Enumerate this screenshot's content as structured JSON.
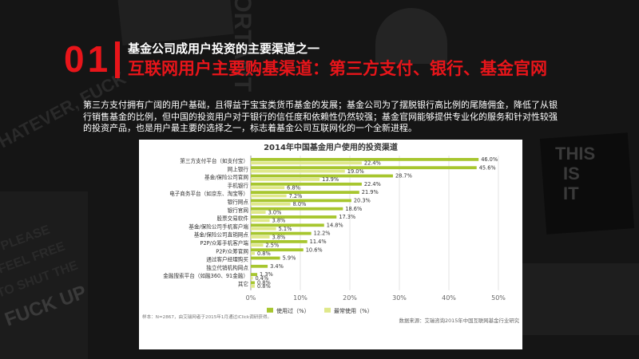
{
  "header": {
    "number": "01",
    "title_line1": "基金公司成用户投资的主要渠道之一",
    "title_line2": "互联网用户主要购基渠道：第三方支付、银行、基金官网"
  },
  "description": "第三方支付拥有广阔的用户基础，且得益于宝宝类货币基金的发展；基金公司为了摆脱银行高比例的尾随佣金，降低了从银行销售基金的比例，但中国的投资用户对于银行的信任度和依赖性仍然较强；基金官网能够提供专业化的服务和针对性较强的投资产品，也是用户最主要的选择之一，标志着基金公司互联网化的一个全新进程。",
  "background_words": [
    "WHATEVER, FUCK",
    "IMPORTANT",
    "PLEASE",
    "FEEL FREE",
    "TO SHUT THE",
    "FUCK UP",
    "THIS",
    "IS",
    "IT"
  ],
  "colors": {
    "accent": "#e8151a",
    "used": "#a7c62f",
    "most_used": "#dfe88a"
  },
  "chart_data": {
    "type": "bar",
    "orientation": "horizontal",
    "title": "2014年中国基金用户使用的投资渠道",
    "categories": [
      "第三方支付平台（如支付宝）",
      "网上银行",
      "基金/保险公司官网",
      "手机银行",
      "电子商务平台（如京东、淘宝等）",
      "银行网点",
      "银行官网",
      "股票交易软件",
      "基金/保险公司手机客户端",
      "基金/保险公司直销网点",
      "P2P/众筹手机客户端",
      "P2P/众筹官网",
      "通过客户经理购买",
      "独立代销机构网点",
      "金融搜索平台（如融360、91金融）",
      "其它"
    ],
    "series": [
      {
        "name": "使用过（%）",
        "values": [
          46.0,
          45.6,
          28.7,
          22.4,
          21.9,
          20.3,
          18.6,
          17.3,
          14.8,
          12.2,
          11.4,
          10.6,
          5.9,
          3.4,
          1.3,
          0.8
        ]
      },
      {
        "name": "最常使用（%）",
        "values": [
          22.4,
          19.0,
          13.9,
          6.8,
          7.2,
          8.0,
          3.0,
          3.8,
          5.1,
          3.8,
          2.5,
          0.8,
          null,
          null,
          0.4,
          0.8
        ]
      }
    ],
    "value_labels": {
      "used": [
        "46.0%",
        "45.6%",
        "28.7%",
        "22.4%",
        "21.9%",
        "20.3%",
        "18.6%",
        "17.3%",
        "14.8%",
        "12.2%",
        "11.4%",
        "10.6%",
        "5.9%",
        "3.4%",
        "1.3%",
        "0.8%"
      ],
      "most_used": [
        "22.4%",
        "19.0%",
        "13.9%",
        "6.8%",
        "7.2%",
        "8.0%",
        "3.0%",
        "3.8%",
        "5.1%",
        "3.8%",
        "2.5%",
        "0.8%",
        "",
        "",
        "0.4%",
        "0.8%"
      ]
    },
    "xlim": [
      0,
      50
    ],
    "xticks": [
      "0%",
      "10%",
      "20%",
      "30%",
      "40%",
      "50%"
    ],
    "grid": true,
    "legend": "bottom",
    "sample_note": "样本：N=2867，由艾瑞网者于2015年1月通过iClick调研获得。",
    "source": "数据来源：艾瑞咨询2015年中国互联网基金行业研究"
  }
}
